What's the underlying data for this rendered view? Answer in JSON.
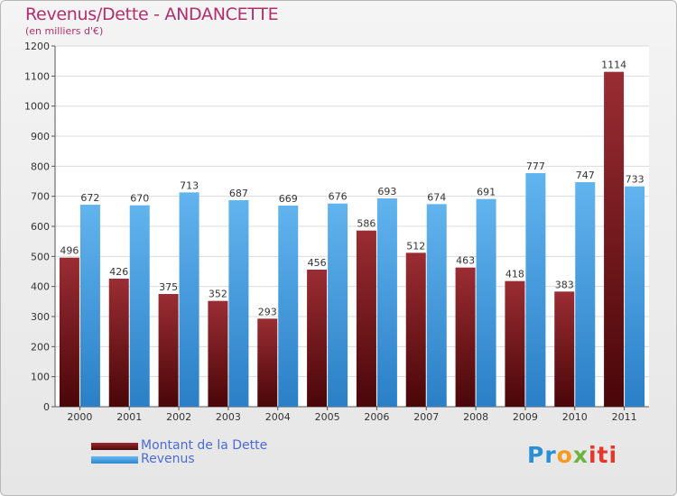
{
  "chart_data": {
    "type": "bar",
    "title": "Revenus/Dette - ANDANCETTE",
    "subtitle": "(en milliers d'€)",
    "categories": [
      "2000",
      "2001",
      "2002",
      "2003",
      "2004",
      "2005",
      "2006",
      "2007",
      "2008",
      "2009",
      "2010",
      "2011"
    ],
    "series": [
      {
        "name": "Montant de la Dette",
        "color": "#7a1e22",
        "values": [
          496,
          426,
          375,
          352,
          293,
          456,
          586,
          512,
          463,
          418,
          383,
          1114
        ]
      },
      {
        "name": "Revenus",
        "color": "#4aa3e4",
        "values": [
          672,
          670,
          713,
          687,
          669,
          676,
          693,
          674,
          691,
          777,
          747,
          733
        ]
      }
    ],
    "ylim": [
      0,
      1200
    ],
    "yticks": [
      0,
      100,
      200,
      300,
      400,
      500,
      600,
      700,
      800,
      900,
      1000,
      1100,
      1200
    ],
    "grid": true,
    "legend_position": "bottom-left"
  },
  "logo": {
    "text": "Proxiti",
    "parts": [
      "Pr",
      "o",
      "x",
      "iti"
    ]
  }
}
